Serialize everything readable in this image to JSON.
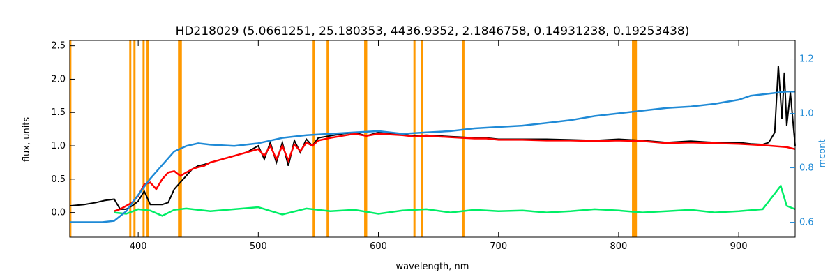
{
  "chart_data": {
    "type": "line",
    "title": "HD218029    (5.0661251, 25.180353, 4436.9352, 2.1846758, 0.14931238, 0.19253438)",
    "xlabel": "wavelength, nm",
    "ylabel": "flux, units",
    "y2label": "mcont",
    "xlim": [
      343,
      947
    ],
    "ylim": [
      -0.37,
      2.58
    ],
    "y2lim": [
      0.545,
      1.268
    ],
    "x_ticks": [
      400,
      500,
      600,
      700,
      800,
      900
    ],
    "y_ticks": [
      "0.0",
      "0.5",
      "1.0",
      "1.5",
      "2.0",
      "2.5"
    ],
    "y2_ticks": [
      "0.6",
      "0.8",
      "1.0",
      "1.2"
    ],
    "colors": {
      "observed": "#000000",
      "model": "#ff0000",
      "residual": "#00ee66",
      "continuum": "#1f8ad6",
      "masked_lines": "#ff9900",
      "mask_points": "#ffff00"
    },
    "masked_lines_nm": [
      343.5,
      393.4,
      396.9,
      404.5,
      407.8,
      434.0,
      435.5,
      546.1,
      557.7,
      588.99,
      589.59,
      589.8,
      630.0,
      636.4,
      670.8,
      812.0,
      812.6,
      813.2,
      813.8,
      814.4
    ],
    "series": [
      {
        "key": "observed",
        "x": [
          343,
          355,
          365,
          372,
          380,
          385,
          390,
          395,
          400,
          405,
          410,
          415,
          420,
          425,
          430,
          435,
          440,
          445,
          450,
          455,
          460,
          470,
          480,
          490,
          500,
          505,
          510,
          515,
          520,
          525,
          530,
          535,
          540,
          545,
          550,
          560,
          570,
          580,
          590,
          600,
          610,
          620,
          630,
          640,
          650,
          660,
          670,
          680,
          690,
          700,
          720,
          740,
          760,
          780,
          800,
          820,
          840,
          860,
          880,
          900,
          910,
          920,
          925,
          930,
          933,
          936,
          938,
          940,
          943,
          947
        ],
        "y": [
          0.1,
          0.12,
          0.15,
          0.18,
          0.2,
          0.05,
          0.05,
          0.1,
          0.17,
          0.32,
          0.12,
          0.12,
          0.12,
          0.15,
          0.35,
          0.45,
          0.55,
          0.65,
          0.7,
          0.72,
          0.75,
          0.8,
          0.85,
          0.9,
          1.0,
          0.8,
          1.05,
          0.75,
          1.05,
          0.7,
          1.08,
          0.9,
          1.1,
          1.0,
          1.12,
          1.15,
          1.18,
          1.2,
          1.15,
          1.2,
          1.18,
          1.17,
          1.15,
          1.16,
          1.15,
          1.14,
          1.13,
          1.12,
          1.12,
          1.1,
          1.1,
          1.1,
          1.09,
          1.08,
          1.1,
          1.08,
          1.05,
          1.07,
          1.05,
          1.05,
          1.03,
          1.02,
          1.05,
          1.2,
          2.2,
          1.4,
          2.1,
          1.3,
          1.8,
          1.0
        ]
      },
      {
        "key": "model",
        "x": [
          380,
          385,
          390,
          395,
          400,
          405,
          410,
          415,
          420,
          425,
          430,
          435,
          440,
          445,
          450,
          455,
          460,
          470,
          480,
          490,
          500,
          505,
          510,
          515,
          520,
          525,
          530,
          535,
          540,
          545,
          550,
          560,
          570,
          580,
          590,
          600,
          610,
          620,
          630,
          640,
          650,
          660,
          670,
          680,
          690,
          700,
          720,
          740,
          760,
          780,
          800,
          820,
          840,
          860,
          880,
          900,
          920,
          940,
          947
        ],
        "y": [
          0.02,
          0.05,
          0.1,
          0.15,
          0.25,
          0.42,
          0.45,
          0.35,
          0.5,
          0.6,
          0.62,
          0.55,
          0.6,
          0.65,
          0.68,
          0.7,
          0.75,
          0.8,
          0.85,
          0.9,
          0.95,
          0.85,
          1.0,
          0.8,
          1.0,
          0.78,
          1.02,
          0.92,
          1.05,
          1.0,
          1.08,
          1.12,
          1.15,
          1.18,
          1.15,
          1.18,
          1.17,
          1.16,
          1.14,
          1.15,
          1.14,
          1.13,
          1.12,
          1.11,
          1.11,
          1.09,
          1.09,
          1.08,
          1.08,
          1.07,
          1.08,
          1.07,
          1.04,
          1.05,
          1.04,
          1.03,
          1.01,
          0.98,
          0.95
        ]
      },
      {
        "key": "residual",
        "x": [
          380,
          390,
          400,
          410,
          420,
          430,
          440,
          460,
          480,
          500,
          520,
          540,
          560,
          580,
          600,
          620,
          640,
          660,
          680,
          700,
          720,
          740,
          760,
          780,
          800,
          820,
          840,
          860,
          880,
          900,
          920,
          935,
          940,
          947
        ],
        "y": [
          0.0,
          -0.02,
          0.05,
          0.03,
          -0.05,
          0.04,
          0.06,
          0.02,
          0.05,
          0.08,
          -0.03,
          0.06,
          0.02,
          0.04,
          -0.02,
          0.03,
          0.05,
          0.0,
          0.04,
          0.02,
          0.03,
          0.0,
          0.02,
          0.05,
          0.03,
          0.0,
          0.02,
          0.04,
          0.0,
          0.02,
          0.05,
          0.4,
          0.1,
          0.05
        ]
      },
      {
        "key": "continuum",
        "axis": "right",
        "x": [
          343,
          370,
          380,
          390,
          400,
          410,
          420,
          430,
          440,
          450,
          460,
          480,
          500,
          520,
          540,
          560,
          580,
          600,
          620,
          640,
          660,
          680,
          700,
          720,
          740,
          760,
          780,
          800,
          820,
          840,
          860,
          880,
          900,
          910,
          920,
          930,
          940,
          947
        ],
        "y": [
          0.6,
          0.6,
          0.605,
          0.64,
          0.7,
          0.76,
          0.81,
          0.86,
          0.88,
          0.89,
          0.885,
          0.88,
          0.89,
          0.91,
          0.92,
          0.925,
          0.93,
          0.935,
          0.925,
          0.93,
          0.935,
          0.945,
          0.95,
          0.955,
          0.965,
          0.975,
          0.99,
          1.0,
          1.01,
          1.02,
          1.025,
          1.035,
          1.05,
          1.065,
          1.07,
          1.075,
          1.08,
          1.08
        ]
      }
    ]
  }
}
